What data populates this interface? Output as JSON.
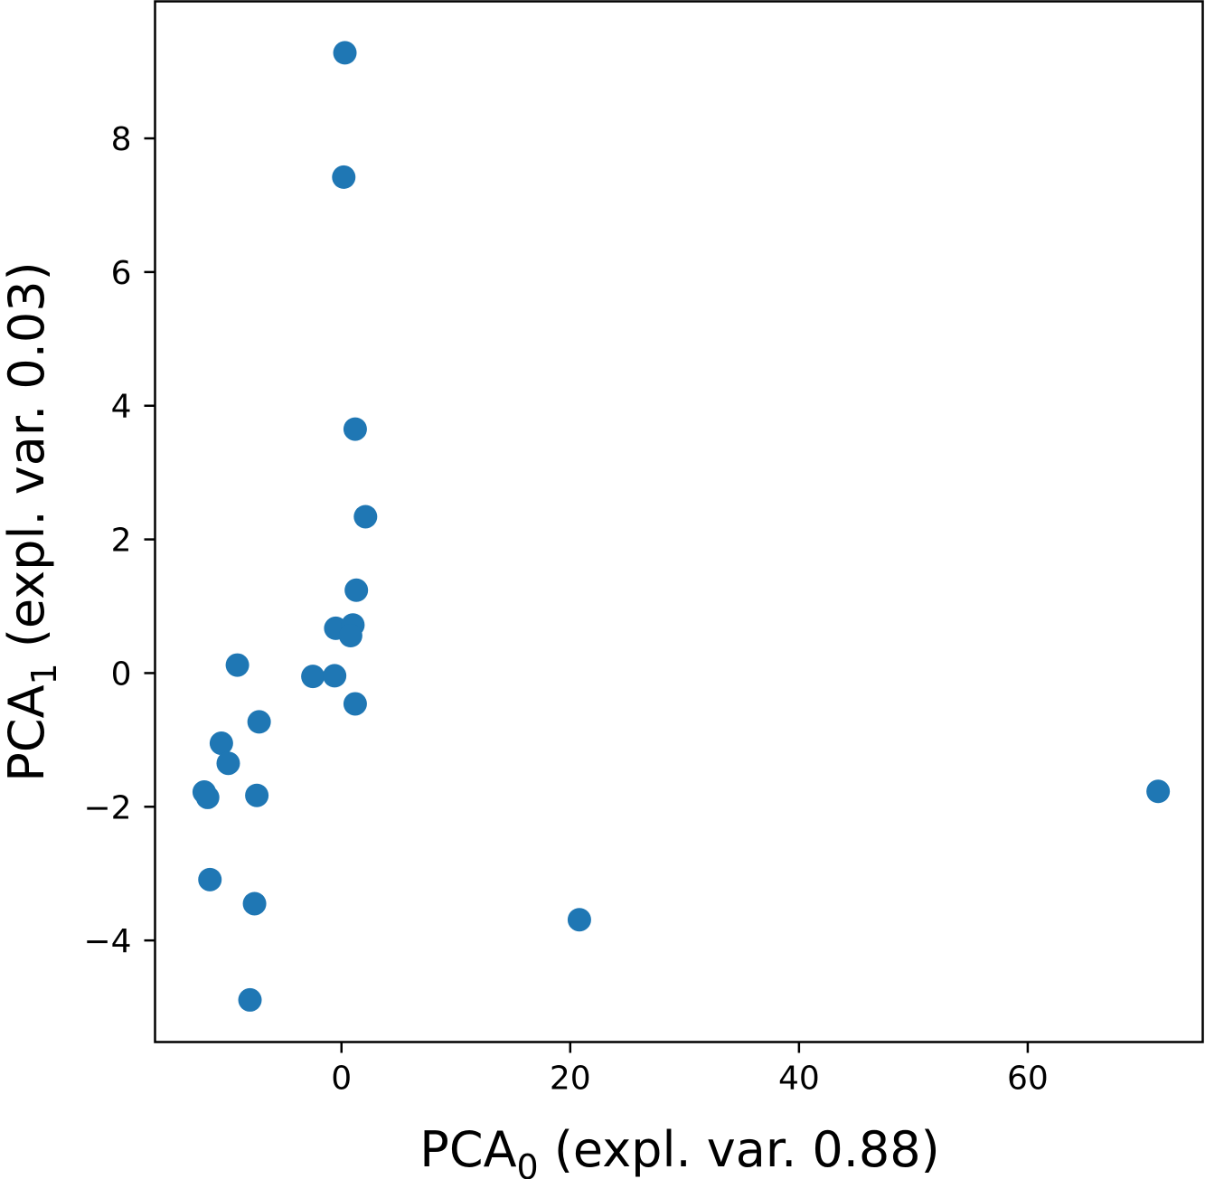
{
  "chart_data": {
    "type": "scatter",
    "title": "",
    "xlabel": {
      "main": "PCA",
      "sub": "0",
      "rest": " (expl. var. 0.88)"
    },
    "ylabel": {
      "main": "PCA",
      "sub": "1",
      "rest": " (expl. var. 0.03)"
    },
    "xlim": [
      -16.3,
      75.3
    ],
    "ylim": [
      -5.52,
      10.05
    ],
    "xticks": [
      0,
      20,
      40,
      60
    ],
    "xtick_labels": [
      "0",
      "20",
      "40",
      "60"
    ],
    "yticks": [
      -4,
      -2,
      0,
      2,
      4,
      6,
      8
    ],
    "ytick_labels": [
      "−4",
      "−2",
      "0",
      "2",
      "4",
      "6",
      "8"
    ],
    "grid": false,
    "color": "#1f77b4",
    "points": [
      {
        "x": 0.3,
        "y": 9.28
      },
      {
        "x": 0.2,
        "y": 7.42
      },
      {
        "x": 1.2,
        "y": 3.65
      },
      {
        "x": 2.1,
        "y": 2.34
      },
      {
        "x": 1.3,
        "y": 1.24
      },
      {
        "x": -0.5,
        "y": 0.67
      },
      {
        "x": 1.0,
        "y": 0.72
      },
      {
        "x": 0.8,
        "y": 0.56
      },
      {
        "x": -9.1,
        "y": 0.12
      },
      {
        "x": -2.5,
        "y": -0.05
      },
      {
        "x": -0.6,
        "y": -0.04
      },
      {
        "x": 1.2,
        "y": -0.46
      },
      {
        "x": -7.2,
        "y": -0.73
      },
      {
        "x": -10.5,
        "y": -1.05
      },
      {
        "x": -9.9,
        "y": -1.35
      },
      {
        "x": -12.0,
        "y": -1.78
      },
      {
        "x": -11.7,
        "y": -1.86
      },
      {
        "x": -7.4,
        "y": -1.83
      },
      {
        "x": 71.4,
        "y": -1.77
      },
      {
        "x": -11.5,
        "y": -3.09
      },
      {
        "x": -7.6,
        "y": -3.45
      },
      {
        "x": 20.8,
        "y": -3.69
      },
      {
        "x": -8.0,
        "y": -4.89
      }
    ]
  }
}
